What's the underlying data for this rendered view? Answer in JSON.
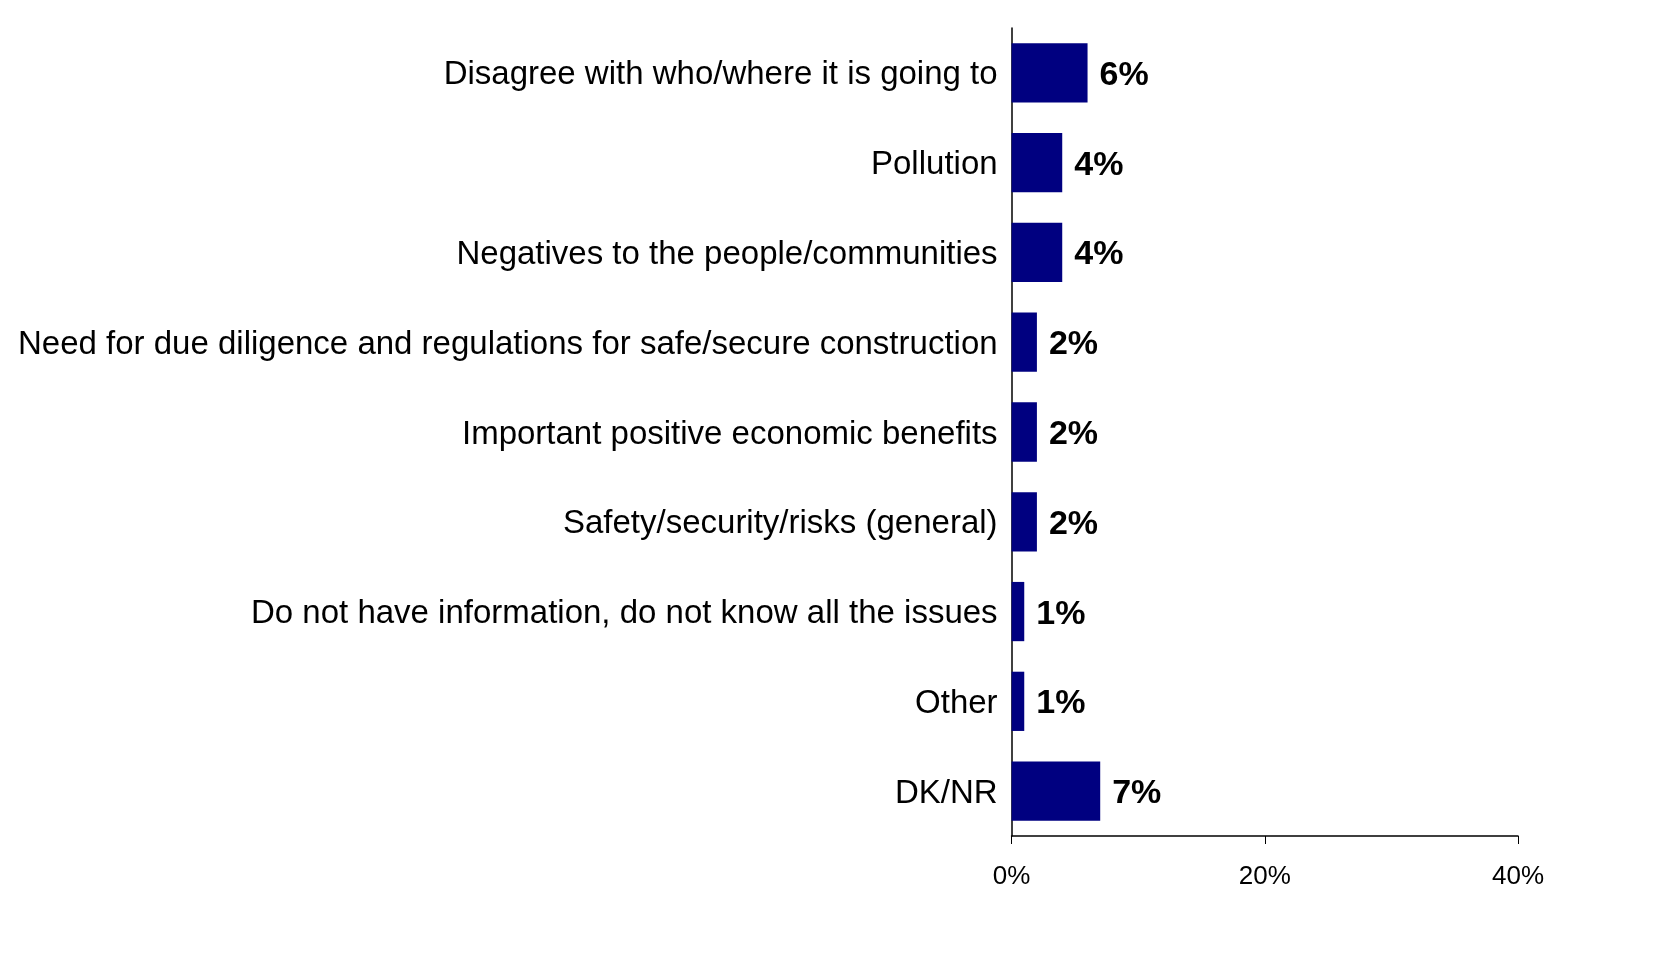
{
  "chart_data": {
    "type": "bar",
    "orientation": "horizontal",
    "categories": [
      "Disagree with who/where it is going to",
      "Pollution",
      "Negatives to the people/communities",
      "Need for due diligence and regulations for safe/secure construction",
      "Important positive economic benefits",
      "Safety/security/risks (general)",
      "Do not have information, do not know all the issues",
      "Other",
      "DK/NR"
    ],
    "values": [
      6,
      4,
      4,
      2,
      2,
      2,
      1,
      1,
      7
    ],
    "value_labels": [
      "6%",
      "4%",
      "4%",
      "2%",
      "2%",
      "2%",
      "1%",
      "1%",
      "7%"
    ],
    "color": "#000080",
    "xlim": [
      0,
      40
    ],
    "xticks": [
      {
        "value": 0,
        "label": "0%"
      },
      {
        "value": 20,
        "label": "20%"
      },
      {
        "value": 40,
        "label": "40%"
      }
    ],
    "grid": false
  }
}
